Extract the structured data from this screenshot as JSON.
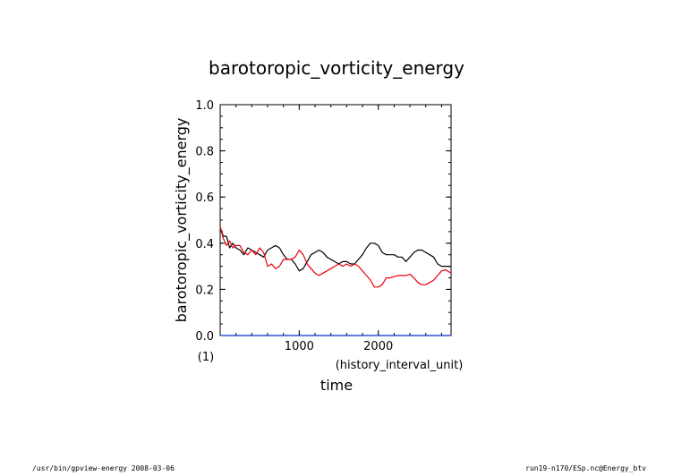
{
  "chart_data": {
    "type": "line",
    "title": "barotoropic_vorticity_energy",
    "xlabel": "time",
    "xunit": "(history_interval_unit)",
    "ylabel": "barotoropic_vorticity_energy",
    "yunit": "(1)",
    "xlim": [
      0,
      2920
    ],
    "ylim": [
      0,
      1.0
    ],
    "xticks": [
      1000,
      2000
    ],
    "xtick_labels": [
      "1000",
      "2000"
    ],
    "yticks": [
      0,
      0.2,
      0.4,
      0.6,
      0.8,
      1.0
    ],
    "ytick_labels": [
      "0.0",
      "0.2",
      "0.4",
      "0.6",
      "0.8",
      "1.0"
    ],
    "grid": false,
    "series": [
      {
        "color": "#000000",
        "x": [
          0,
          40,
          80,
          120,
          160,
          200,
          250,
          300,
          350,
          400,
          450,
          500,
          550,
          600,
          650,
          700,
          750,
          800,
          850,
          900,
          950,
          1000,
          1050,
          1100,
          1150,
          1200,
          1250,
          1300,
          1350,
          1400,
          1450,
          1500,
          1550,
          1600,
          1650,
          1700,
          1750,
          1800,
          1850,
          1900,
          1950,
          2000,
          2050,
          2100,
          2150,
          2200,
          2250,
          2300,
          2350,
          2400,
          2450,
          2500,
          2550,
          2600,
          2650,
          2700,
          2750,
          2800,
          2850,
          2920
        ],
        "y": [
          0.47,
          0.43,
          0.43,
          0.38,
          0.4,
          0.38,
          0.37,
          0.35,
          0.38,
          0.37,
          0.36,
          0.35,
          0.34,
          0.37,
          0.38,
          0.39,
          0.38,
          0.35,
          0.33,
          0.33,
          0.31,
          0.28,
          0.29,
          0.32,
          0.35,
          0.36,
          0.37,
          0.36,
          0.34,
          0.33,
          0.32,
          0.31,
          0.32,
          0.32,
          0.31,
          0.31,
          0.33,
          0.35,
          0.38,
          0.4,
          0.4,
          0.39,
          0.36,
          0.35,
          0.35,
          0.35,
          0.34,
          0.34,
          0.32,
          0.34,
          0.36,
          0.37,
          0.37,
          0.36,
          0.35,
          0.34,
          0.31,
          0.3,
          0.3,
          0.3
        ]
      },
      {
        "color": "#e8000b",
        "x": [
          0,
          40,
          80,
          120,
          160,
          200,
          250,
          300,
          350,
          400,
          450,
          500,
          550,
          600,
          650,
          700,
          750,
          800,
          850,
          900,
          950,
          1000,
          1050,
          1100,
          1150,
          1200,
          1250,
          1300,
          1350,
          1400,
          1450,
          1500,
          1550,
          1600,
          1650,
          1700,
          1750,
          1800,
          1850,
          1900,
          1950,
          2000,
          2050,
          2100,
          2150,
          2200,
          2250,
          2300,
          2350,
          2400,
          2450,
          2500,
          2550,
          2600,
          2650,
          2700,
          2750,
          2800,
          2850,
          2920
        ],
        "y": [
          0.47,
          0.42,
          0.39,
          0.41,
          0.38,
          0.39,
          0.39,
          0.36,
          0.35,
          0.37,
          0.35,
          0.38,
          0.36,
          0.3,
          0.31,
          0.29,
          0.3,
          0.33,
          0.33,
          0.33,
          0.34,
          0.37,
          0.35,
          0.31,
          0.29,
          0.27,
          0.26,
          0.27,
          0.28,
          0.29,
          0.3,
          0.31,
          0.3,
          0.31,
          0.3,
          0.31,
          0.3,
          0.28,
          0.26,
          0.24,
          0.21,
          0.21,
          0.22,
          0.25,
          0.25,
          0.255,
          0.26,
          0.26,
          0.26,
          0.265,
          0.25,
          0.23,
          0.22,
          0.22,
          0.23,
          0.24,
          0.26,
          0.28,
          0.285,
          0.27
        ]
      },
      {
        "color": "#0033cc",
        "x": [
          0,
          2920
        ],
        "y": [
          0.0,
          0.0
        ]
      }
    ]
  },
  "footer": {
    "left": "/usr/bin/gpview-energy  2008-03-06",
    "right": "run19-n170/ESp.nc@Energy_btv"
  }
}
